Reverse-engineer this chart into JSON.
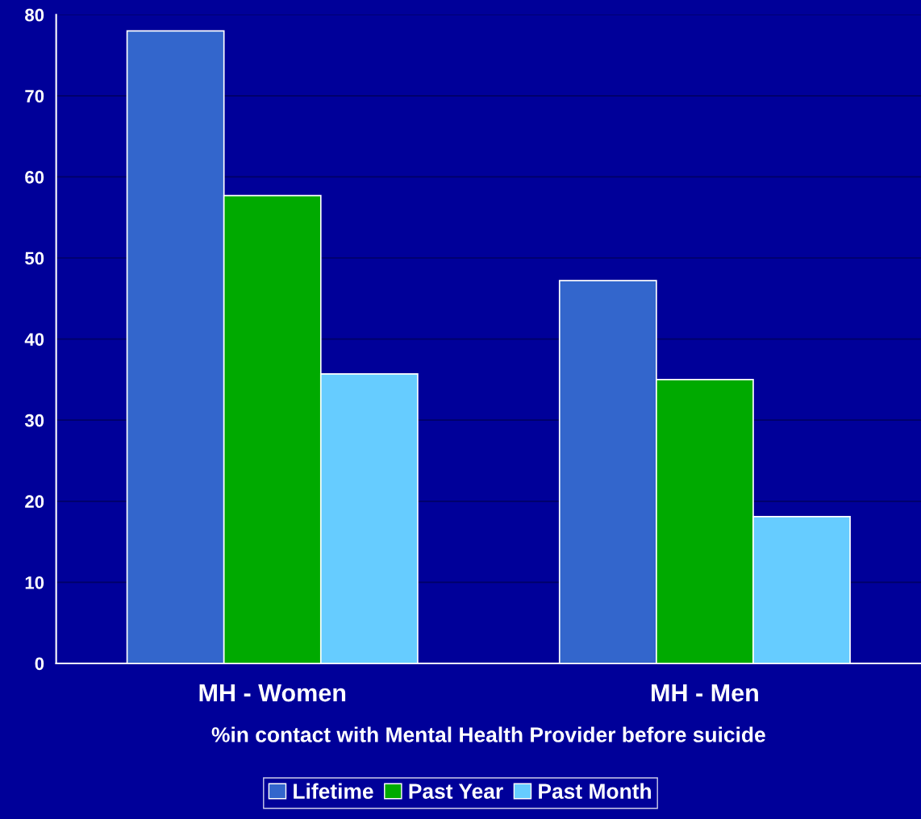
{
  "chart_data": {
    "type": "bar",
    "xlabel": "%in contact with Mental Health Provider before suicide",
    "categories": [
      "MH - Women",
      "MH - Men"
    ],
    "series": [
      {
        "name": "Lifetime",
        "color": "#3366cc",
        "values": [
          78,
          47.2
        ]
      },
      {
        "name": "Past Year",
        "color": "#00aa00",
        "values": [
          57.7,
          35.0
        ]
      },
      {
        "name": "Past Month",
        "color": "#66ccff",
        "values": [
          35.7,
          18.1
        ]
      }
    ],
    "ylim": [
      0,
      80
    ],
    "yticks": [
      0,
      10,
      20,
      30,
      40,
      50,
      60,
      70,
      80
    ],
    "grid": "y",
    "legend": "bottom"
  }
}
